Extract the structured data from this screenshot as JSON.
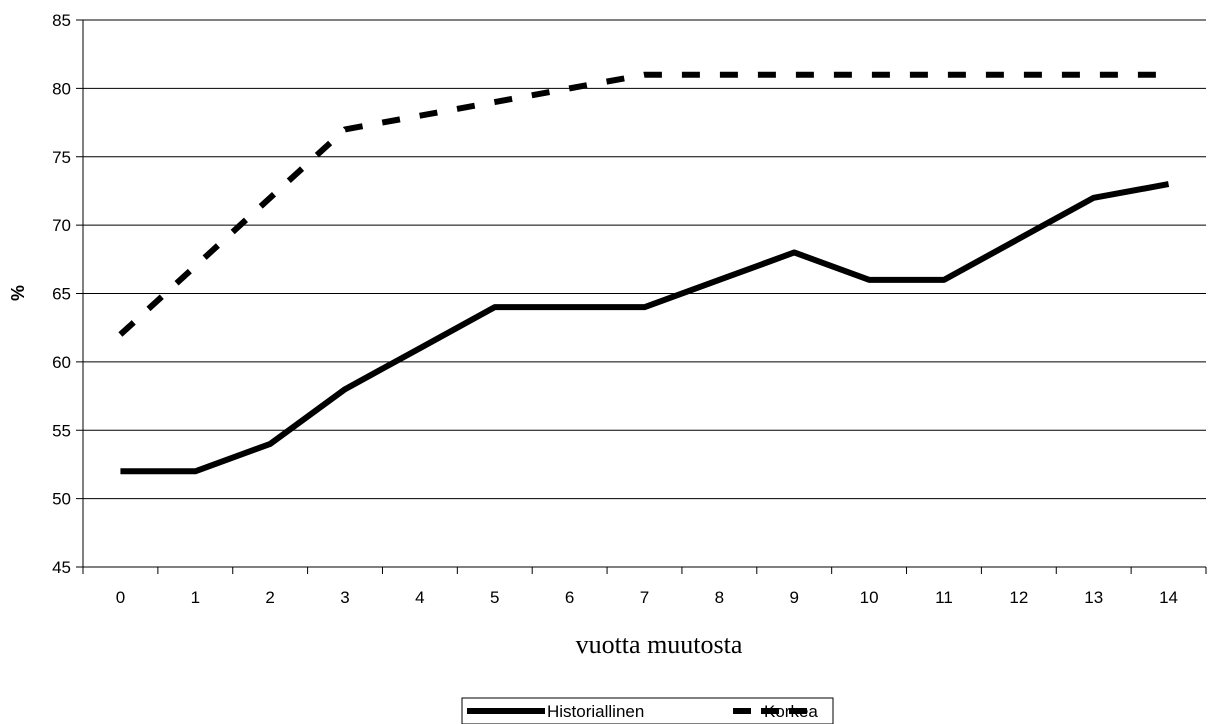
{
  "chart_data": {
    "type": "line",
    "title": "",
    "xlabel": "vuotta muutosta",
    "ylabel": "%",
    "x": [
      0,
      1,
      2,
      3,
      4,
      5,
      6,
      7,
      8,
      9,
      10,
      11,
      12,
      13,
      14
    ],
    "ylim": [
      45,
      85
    ],
    "yticks": [
      45,
      50,
      55,
      60,
      65,
      70,
      75,
      80,
      85
    ],
    "grid": "horizontal",
    "legend_position": "bottom",
    "series": [
      {
        "name": "Historiallinen",
        "style": "solid",
        "color": "#000000",
        "values": [
          52,
          52,
          54,
          58,
          61,
          64,
          64,
          64,
          66,
          68,
          66,
          66,
          69,
          72,
          73
        ]
      },
      {
        "name": "Korkea",
        "style": "dashed",
        "color": "#000000",
        "values": [
          62,
          67,
          72,
          77,
          78,
          79,
          80,
          81,
          81,
          81,
          81,
          81,
          81,
          81,
          81
        ]
      }
    ]
  }
}
